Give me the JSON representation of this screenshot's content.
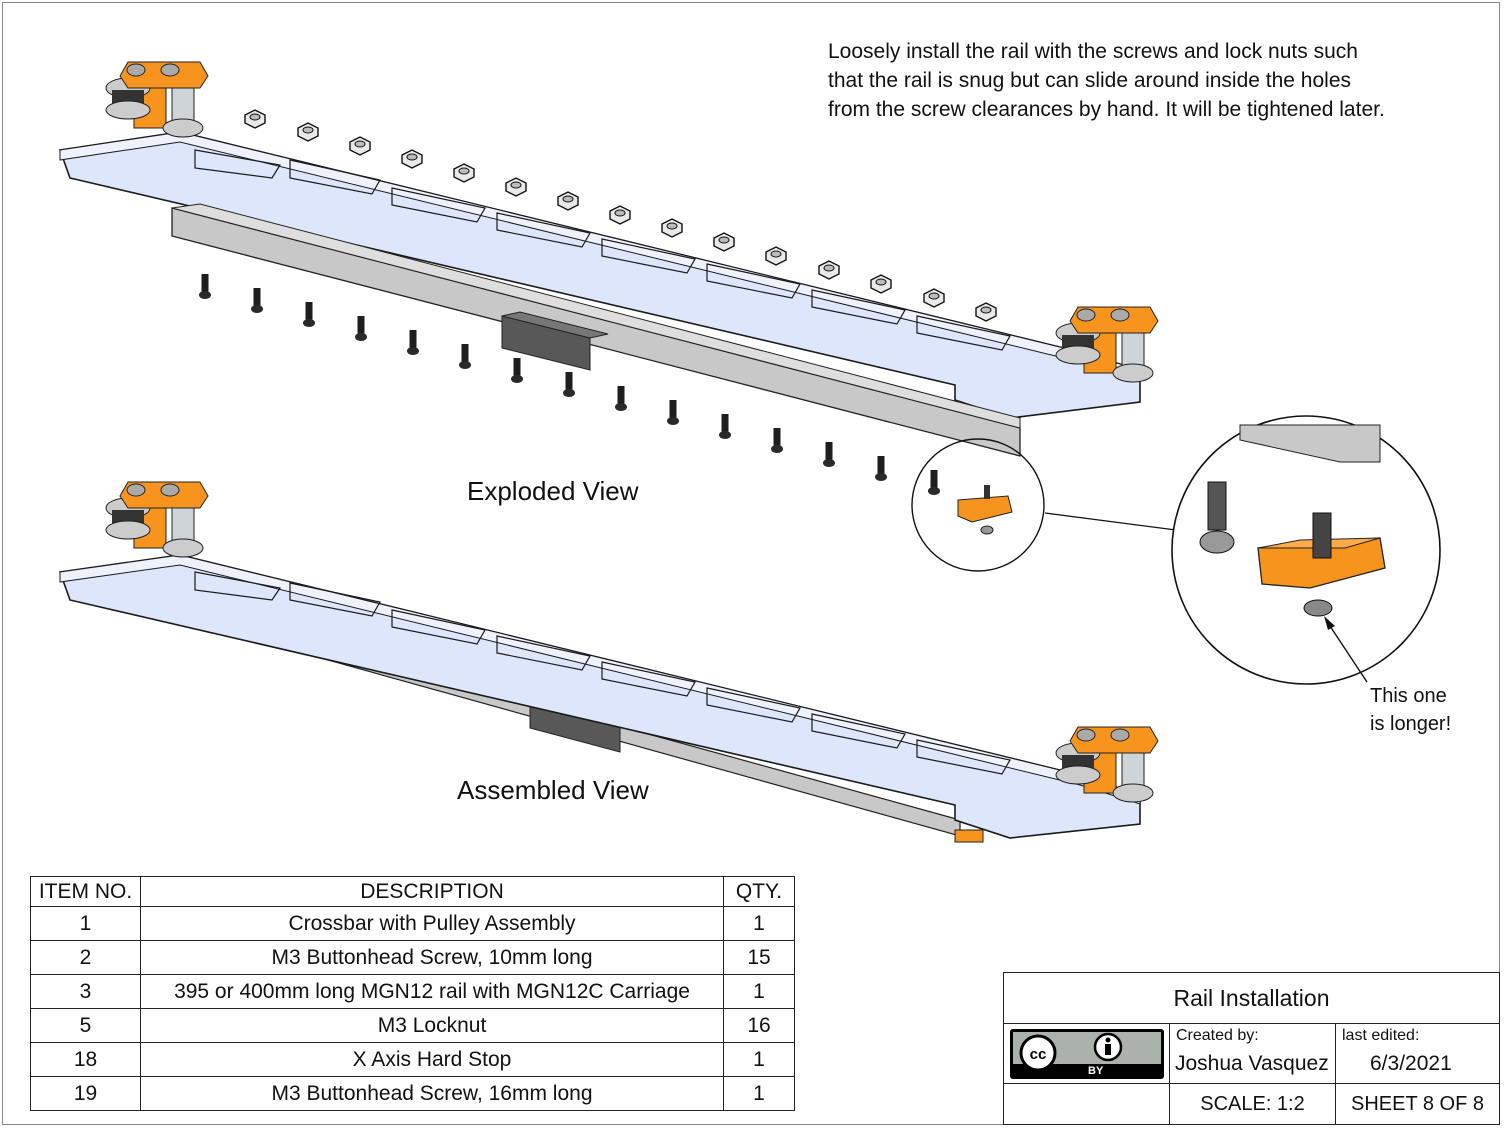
{
  "instructions": {
    "lines": [
      "Loosely install the rail with the screws and lock nuts such",
      "that the rail is snug but can slide around inside the holes",
      "from the screw clearances by hand. It will be tightened later."
    ]
  },
  "views": {
    "exploded_label": "Exploded View",
    "assembled_label": "Assembled View"
  },
  "detail_callout": {
    "lines": [
      "This one",
      "is longer!"
    ]
  },
  "bom": {
    "headers": [
      "ITEM NO.",
      "DESCRIPTION",
      "QTY."
    ],
    "rows": [
      [
        "1",
        "Crossbar with Pulley Assembly",
        "1"
      ],
      [
        "2",
        "M3 Buttonhead Screw, 10mm long",
        "15"
      ],
      [
        "3",
        "395 or 400mm long MGN12 rail with MGN12C Carriage",
        "1"
      ],
      [
        "5",
        "M3 Locknut",
        "16"
      ],
      [
        "18",
        "X Axis Hard Stop",
        "1"
      ],
      [
        "19",
        "M3 Buttonhead Screw, 16mm long",
        "1"
      ]
    ]
  },
  "title_block": {
    "title": "Rail Installation",
    "license_cc": "cc",
    "license_by": "BY",
    "created_label": "Created by:",
    "created_value": "Joshua Vasquez",
    "edited_label": "last edited:",
    "edited_value": "6/3/2021",
    "scale": "SCALE: 1:2",
    "sheet": "SHEET 8 OF 8"
  },
  "colors": {
    "crossbar_fill": "#dde6fb",
    "crossbar_stroke": "#1a1a1a",
    "rail_fill": "#c8c8c8",
    "carriage_fill": "#585858",
    "pulley_orange": "#f7941d",
    "hardware_black": "#1a1a1a",
    "hardware_gray": "#9a9a9a"
  }
}
